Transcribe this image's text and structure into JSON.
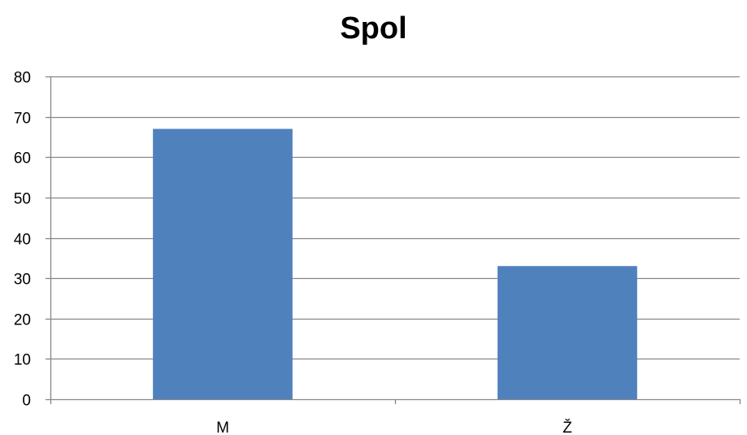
{
  "chart_data": {
    "type": "bar",
    "title": "Spol",
    "categories": [
      "M",
      "Ž"
    ],
    "values": [
      67,
      33
    ],
    "ylim": [
      0,
      80
    ],
    "yticks": [
      0,
      10,
      20,
      30,
      40,
      50,
      60,
      70,
      80
    ],
    "grid": true,
    "legend": "none",
    "bar_color": "#4F81BD",
    "grid_color": "#868686",
    "axis_color": "#868686"
  }
}
